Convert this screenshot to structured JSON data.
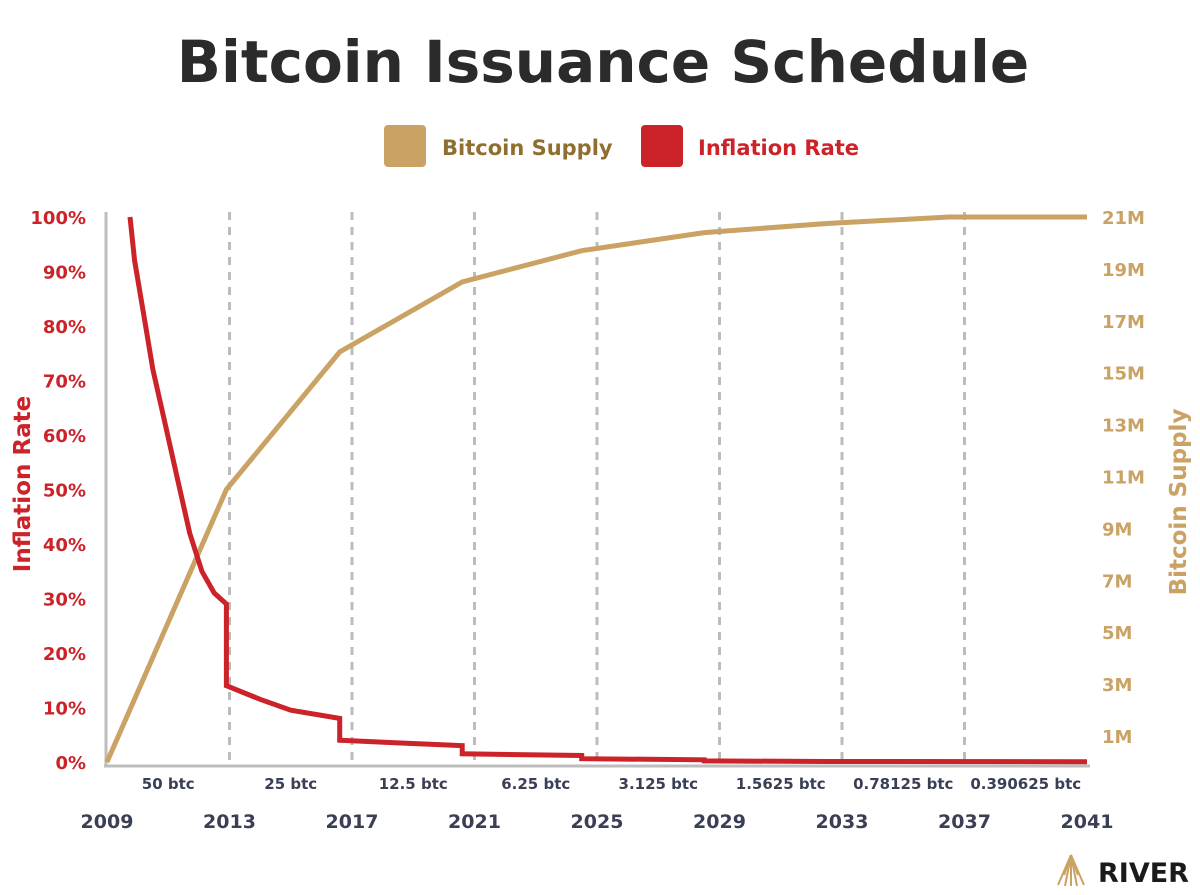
{
  "title": "Bitcoin Issuance Schedule",
  "brand": "RIVER",
  "colors": {
    "supply": "#c9a264",
    "inflation": "#cc2229",
    "text": "#2b2b2b",
    "axis_text": "#3a3f55",
    "grid": "#bcbcbc",
    "legend_supply_text": "#8f6f2f"
  },
  "chart_data": {
    "type": "line",
    "title": "Bitcoin Issuance Schedule",
    "legend": {
      "position": "top",
      "entries": [
        "Bitcoin Supply",
        "Inflation Rate"
      ]
    },
    "x_ticks": [
      "2009",
      "2013",
      "2017",
      "2021",
      "2025",
      "2029",
      "2033",
      "2037",
      "2041"
    ],
    "xlim": [
      2009,
      2041
    ],
    "halving_years": [
      2013,
      2017,
      2021,
      2025,
      2029,
      2033,
      2037
    ],
    "grid": "vertical dashed at halvings",
    "era_labels": [
      "50 btc",
      "25 btc",
      "12.5 btc",
      "6.25 btc",
      "3.125 btc",
      "1.5625 btc",
      "0.78125 btc",
      "0.390625 btc"
    ],
    "y_left": {
      "label": "Inflation Rate",
      "ticks": [
        "0%",
        "10%",
        "20%",
        "30%",
        "40%",
        "50%",
        "60%",
        "70%",
        "80%",
        "90%",
        "100%"
      ],
      "lim": [
        0,
        100
      ]
    },
    "y_right": {
      "label": "Bitcoin Supply",
      "ticks": [
        "1M",
        "3M",
        "5M",
        "7M",
        "9M",
        "11M",
        "13M",
        "15M",
        "17M",
        "19M",
        "21M"
      ],
      "lim": [
        0,
        21
      ]
    },
    "series": [
      {
        "name": "Bitcoin Supply",
        "axis": "right",
        "unit": "M BTC",
        "points": [
          [
            2009,
            0
          ],
          [
            2012.9,
            10.5
          ],
          [
            2016.6,
            15.8
          ],
          [
            2020.6,
            18.5
          ],
          [
            2024.5,
            19.7
          ],
          [
            2028.5,
            20.4
          ],
          [
            2032.5,
            20.75
          ],
          [
            2036.5,
            21
          ],
          [
            2041,
            21
          ]
        ]
      },
      {
        "name": "Inflation Rate",
        "axis": "left",
        "unit": "%",
        "points": [
          [
            2009.75,
            100
          ],
          [
            2009.9,
            92
          ],
          [
            2010.2,
            82
          ],
          [
            2010.5,
            72
          ],
          [
            2010.9,
            62
          ],
          [
            2011.3,
            52
          ],
          [
            2011.7,
            42
          ],
          [
            2012.1,
            35
          ],
          [
            2012.5,
            31
          ],
          [
            2012.9,
            29
          ],
          [
            2012.9,
            14
          ],
          [
            2014,
            11.5
          ],
          [
            2015,
            9.5
          ],
          [
            2016.6,
            8
          ],
          [
            2016.6,
            4
          ],
          [
            2018.5,
            3.5
          ],
          [
            2020.6,
            3
          ],
          [
            2020.6,
            1.5
          ],
          [
            2024.5,
            1.2
          ],
          [
            2024.5,
            0.6
          ],
          [
            2028.5,
            0.4
          ],
          [
            2028.5,
            0.2
          ],
          [
            2032.5,
            0.1
          ],
          [
            2041,
            0.05
          ]
        ]
      }
    ]
  }
}
